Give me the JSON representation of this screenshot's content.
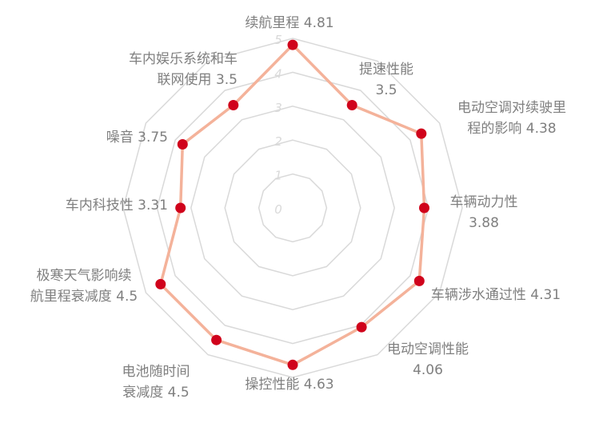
{
  "chart_data": {
    "type": "radar",
    "scale": {
      "min": 0,
      "max": 5,
      "ticks": [
        "0",
        "1",
        "2",
        "3",
        "4",
        "5"
      ]
    },
    "grid": true,
    "colors": {
      "line": "#f4b29a",
      "marker": "#d0021b",
      "grid": "#d9d9d9",
      "label": "#7f7f7f"
    },
    "categories": [
      {
        "lines": [
          "续航里程 4.81"
        ],
        "value": 4.81
      },
      {
        "lines": [
          "提速性能",
          "3.5"
        ],
        "value": 3.5
      },
      {
        "lines": [
          "电动空调对续驶里",
          "程的影响 4.38"
        ],
        "value": 4.38
      },
      {
        "lines": [
          "车辆动力性",
          "3.88"
        ],
        "value": 3.88
      },
      {
        "lines": [
          "车辆涉水通过性 4.31"
        ],
        "value": 4.31
      },
      {
        "lines": [
          "电动空调性能",
          "4.06"
        ],
        "value": 4.06
      },
      {
        "lines": [
          "操控性能 4.63"
        ],
        "value": 4.63
      },
      {
        "lines": [
          "电池随时间",
          "衰减度 4.5"
        ],
        "value": 4.5
      },
      {
        "lines": [
          "极寒天气影响续",
          "航里程衰减度 4.5"
        ],
        "value": 4.5
      },
      {
        "lines": [
          "车内科技性 3.31"
        ],
        "value": 3.31
      },
      {
        "lines": [
          "噪音 3.75"
        ],
        "value": 3.75
      },
      {
        "lines": [
          "车内娱乐系统和车",
          "联网使用 3.5"
        ],
        "value": 3.5
      }
    ]
  }
}
